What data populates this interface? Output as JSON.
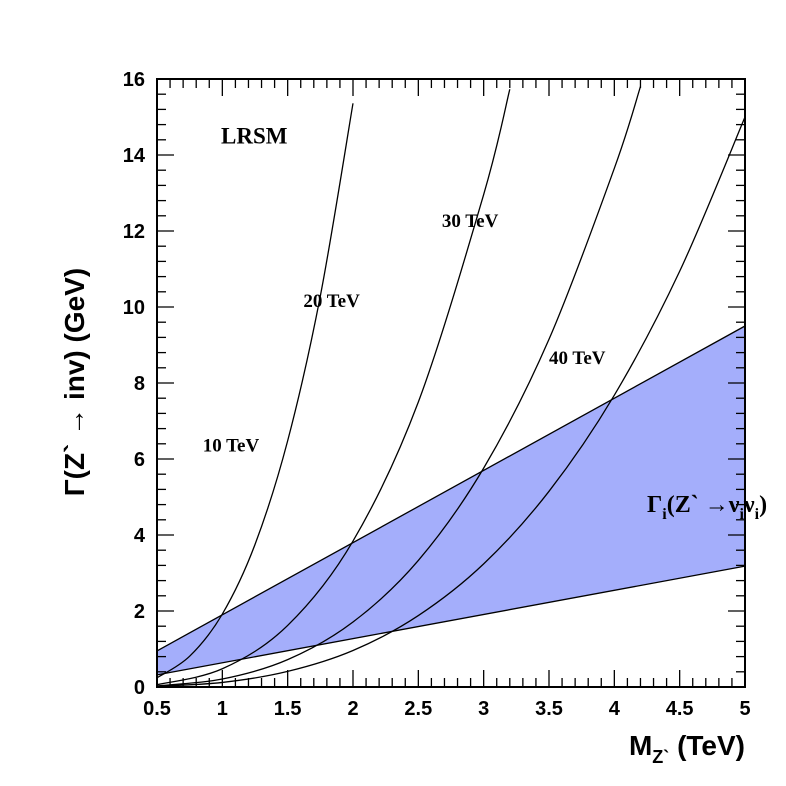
{
  "chart_data": {
    "type": "line",
    "title": "",
    "xlabel": {
      "main": "M",
      "sub": "Z`",
      "unit": " (TeV)"
    },
    "ylabel": "Γ(Z` → inv) (GeV)",
    "xlim": [
      0.5,
      5
    ],
    "ylim": [
      0,
      16
    ],
    "x_ticks": [
      "0.5",
      "1",
      "1.5",
      "2",
      "2.5",
      "3",
      "3.5",
      "4",
      "4.5",
      "5"
    ],
    "y_ticks": [
      "0",
      "2",
      "4",
      "6",
      "8",
      "10",
      "12",
      "14",
      "16"
    ],
    "grid": false,
    "model_label": "LRSM",
    "band": {
      "label": {
        "main": "Γ",
        "i": "i",
        "open": "(Z` →ν",
        "i2": "i",
        "nu": "ν",
        "i3": "i",
        "close": ")"
      },
      "color": "#a4aefb",
      "upper": {
        "x": [
          0.5,
          5
        ],
        "y": [
          0.95,
          9.5
        ]
      },
      "lower": {
        "x": [
          0.5,
          5
        ],
        "y": [
          0.32,
          3.18
        ]
      }
    },
    "series": [
      {
        "name": "10 TeV",
        "x": [
          0.5,
          0.75,
          1.0,
          1.25,
          1.5,
          1.75,
          2.0
        ],
        "y": [
          0.24,
          0.81,
          1.92,
          3.75,
          6.48,
          10.29,
          15.36
        ]
      },
      {
        "name": "20 TeV",
        "x": [
          0.5,
          1.0,
          1.5,
          2.0,
          2.5,
          3.0,
          3.2
        ],
        "y": [
          0.06,
          0.48,
          1.62,
          3.84,
          7.5,
          12.96,
          15.73
        ]
      },
      {
        "name": "30 TeV",
        "x": [
          0.5,
          1.0,
          1.5,
          2.0,
          2.5,
          3.0,
          3.5,
          4.0,
          4.2
        ],
        "y": [
          0.03,
          0.21,
          0.72,
          1.71,
          3.33,
          5.76,
          9.15,
          13.65,
          15.8
        ]
      },
      {
        "name": "40 TeV",
        "x": [
          0.5,
          1.0,
          1.5,
          2.0,
          2.5,
          3.0,
          3.5,
          4.0,
          4.5,
          5.0
        ],
        "y": [
          0.02,
          0.12,
          0.41,
          0.96,
          1.88,
          3.24,
          5.15,
          7.68,
          10.94,
          15.0
        ]
      }
    ],
    "curve_labels": [
      {
        "text": "10 TeV",
        "x": 0.85,
        "y": 6.2
      },
      {
        "text": "20 TeV",
        "x": 1.62,
        "y": 10.0
      },
      {
        "text": "30 TeV",
        "x": 2.68,
        "y": 12.1
      },
      {
        "text": "40 TeV",
        "x": 3.5,
        "y": 8.5
      }
    ],
    "model_label_pos": {
      "x": 0.99,
      "y": 14.3
    },
    "band_label_pos": {
      "x": 4.25,
      "y": 4.6
    }
  }
}
